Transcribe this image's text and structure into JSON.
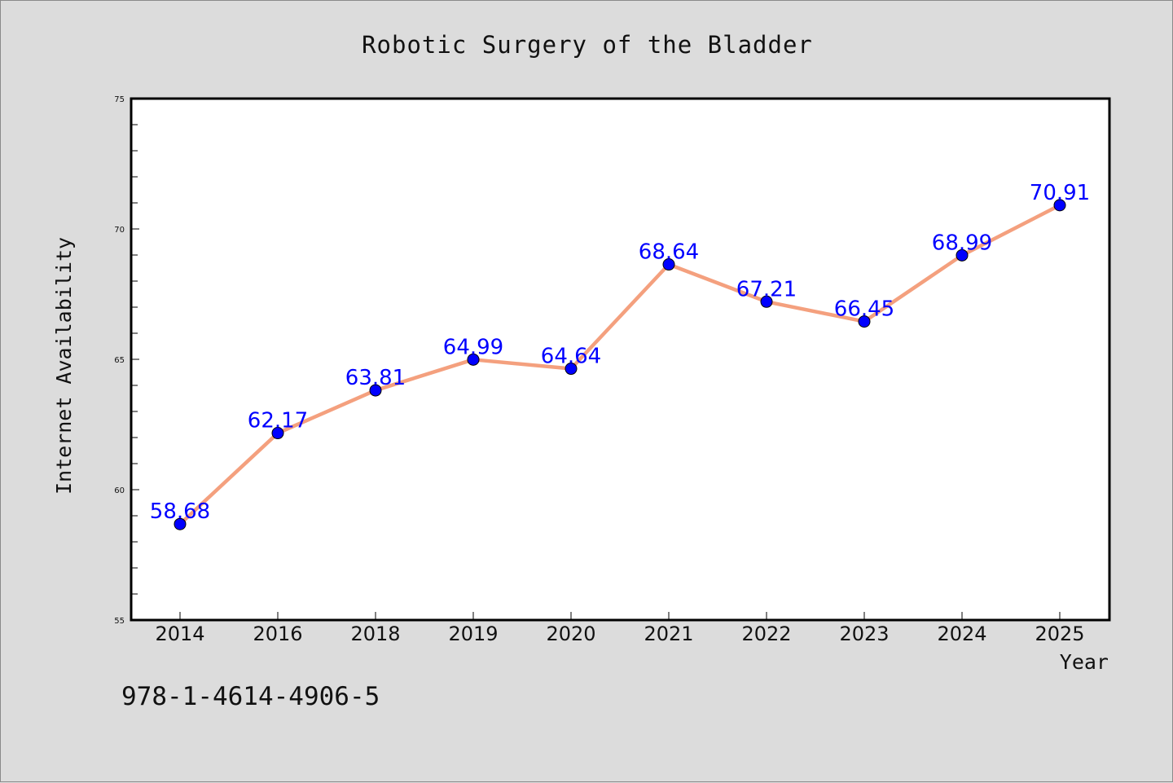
{
  "chart_data": {
    "type": "line",
    "title": "Robotic Surgery of the Bladder",
    "xlabel": "Year",
    "ylabel": "Internet Availability",
    "categories": [
      "2014",
      "2016",
      "2018",
      "2019",
      "2020",
      "2021",
      "2022",
      "2023",
      "2024",
      "2025"
    ],
    "series": [
      {
        "values": [
          58.68,
          62.17,
          63.81,
          64.99,
          64.64,
          68.64,
          67.21,
          66.45,
          68.99,
          70.91
        ],
        "data_labels": [
          "58.68",
          "62.17",
          "63.81",
          "64.99",
          "64.64",
          "68.64",
          "67.21",
          "66.45",
          "68.99",
          "70.91"
        ],
        "line_color": "#f4a07e",
        "marker_color": "#0000ff"
      }
    ],
    "ylim": [
      55,
      75
    ],
    "yticks": [
      "55",
      "60",
      "65",
      "70",
      "75"
    ],
    "grid": false,
    "legend": "none",
    "annotation": "978-1-4614-4906-5"
  }
}
